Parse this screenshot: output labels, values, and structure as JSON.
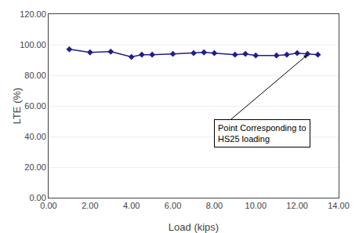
{
  "chart_data": {
    "type": "line",
    "x": [
      1.0,
      2.0,
      3.0,
      4.0,
      4.5,
      5.0,
      6.0,
      7.0,
      7.5,
      8.0,
      9.0,
      9.5,
      10.0,
      11.0,
      11.5,
      12.0,
      12.5,
      13.0
    ],
    "values": [
      97.0,
      95.0,
      95.5,
      92.0,
      93.5,
      93.5,
      94.0,
      94.5,
      95.0,
      94.5,
      93.5,
      94.0,
      93.0,
      93.0,
      93.5,
      94.5,
      94.0,
      93.5
    ],
    "color": "#1F1F8B",
    "marker": "diamond",
    "xlabel": "Load (kips)",
    "ylabel": "LTE (%)",
    "xlim": [
      0.0,
      14.0
    ],
    "ylim": [
      0.0,
      120.0
    ],
    "xticks": [
      {
        "value": 0.0,
        "label": "0.00"
      },
      {
        "value": 2.0,
        "label": "2.00"
      },
      {
        "value": 4.0,
        "label": "4.00"
      },
      {
        "value": 6.0,
        "label": "6.00"
      },
      {
        "value": 8.0,
        "label": "8.00"
      },
      {
        "value": 10.0,
        "label": "10.00"
      },
      {
        "value": 12.0,
        "label": "12.00"
      },
      {
        "value": 14.0,
        "label": "14.00"
      }
    ],
    "yticks": [
      {
        "value": 0.0,
        "label": "0.00"
      },
      {
        "value": 20.0,
        "label": "20.00"
      },
      {
        "value": 40.0,
        "label": "40.00"
      },
      {
        "value": 60.0,
        "label": "60.00"
      },
      {
        "value": 80.0,
        "label": "80.00"
      },
      {
        "value": 100.0,
        "label": "100.00"
      },
      {
        "value": 120.0,
        "label": "120.00"
      }
    ],
    "grid": "y",
    "annotations": [
      {
        "text": "Point Corresponding to\nHS25 loading",
        "x": 12.5,
        "y": 93.5,
        "text_x": 8.0,
        "text_y": 42.0
      }
    ]
  }
}
